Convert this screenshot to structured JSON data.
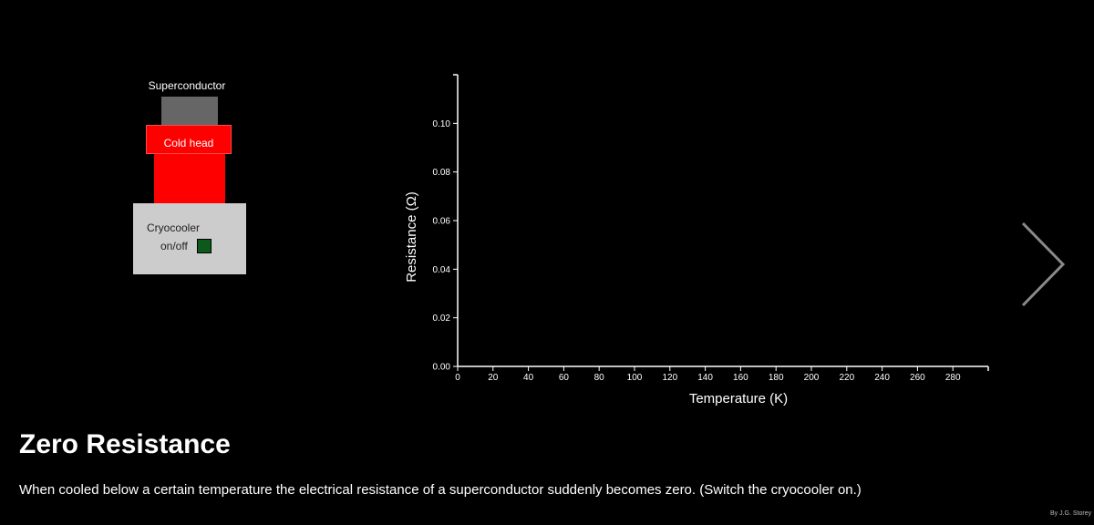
{
  "apparatus": {
    "superconductor_label": "Superconductor",
    "cold_head_label": "Cold head",
    "cryocooler_label": "Cryocooler",
    "onoff_label": "on/off"
  },
  "chart_data": {
    "type": "line",
    "xlabel": "Temperature (K)",
    "ylabel": "Resistance (Ω)",
    "xlim": [
      0,
      300
    ],
    "ylim": [
      0,
      0.12
    ],
    "x_ticks": [
      "0",
      "20",
      "40",
      "60",
      "80",
      "100",
      "120",
      "140",
      "160",
      "180",
      "200",
      "220",
      "240",
      "260",
      "280"
    ],
    "y_ticks": [
      "0.00",
      "0.02",
      "0.04",
      "0.06",
      "0.08",
      "0.10"
    ],
    "series": [],
    "grid": false
  },
  "content": {
    "title": "Zero Resistance",
    "description": "When cooled below a certain temperature the electrical resistance of a superconductor suddenly becomes zero. (Switch the cryocooler on.)",
    "credit": "By J.G. Storey"
  },
  "colors": {
    "background": "#000000",
    "cold_head": "#ff0000",
    "sample": "#666666",
    "cryocooler": "#cccccc",
    "button": "#0b5a1a"
  },
  "icons": {
    "next": "chevron-right-icon"
  }
}
